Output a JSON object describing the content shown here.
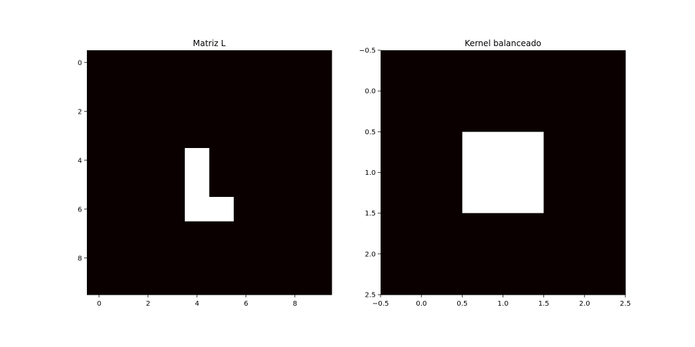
{
  "colors": {
    "background": "#0a0000",
    "foreground": "#ffffff"
  },
  "chart_data": [
    {
      "type": "heatmap",
      "title": "Matriz L",
      "rows": 10,
      "cols": 10,
      "colormap": "hot",
      "matrix": [
        [
          0,
          0,
          0,
          0,
          0,
          0,
          0,
          0,
          0,
          0
        ],
        [
          0,
          0,
          0,
          0,
          0,
          0,
          0,
          0,
          0,
          0
        ],
        [
          0,
          0,
          0,
          0,
          0,
          0,
          0,
          0,
          0,
          0
        ],
        [
          0,
          0,
          0,
          0,
          0,
          0,
          0,
          0,
          0,
          0
        ],
        [
          0,
          0,
          0,
          0,
          1,
          0,
          0,
          0,
          0,
          0
        ],
        [
          0,
          0,
          0,
          0,
          1,
          0,
          0,
          0,
          0,
          0
        ],
        [
          0,
          0,
          0,
          0,
          1,
          1,
          0,
          0,
          0,
          0
        ],
        [
          0,
          0,
          0,
          0,
          0,
          0,
          0,
          0,
          0,
          0
        ],
        [
          0,
          0,
          0,
          0,
          0,
          0,
          0,
          0,
          0,
          0
        ],
        [
          0,
          0,
          0,
          0,
          0,
          0,
          0,
          0,
          0,
          0
        ]
      ],
      "xlim": [
        -0.5,
        9.5
      ],
      "ylim": [
        9.5,
        -0.5
      ],
      "xticks": [
        0,
        2,
        4,
        6,
        8
      ],
      "yticks": [
        0,
        2,
        4,
        6,
        8
      ],
      "xtick_labels": [
        "0",
        "2",
        "4",
        "6",
        "8"
      ],
      "ytick_labels": [
        "0",
        "2",
        "4",
        "6",
        "8"
      ]
    },
    {
      "type": "heatmap",
      "title": "Kernel balanceado",
      "rows": 3,
      "cols": 3,
      "colormap": "hot",
      "matrix": [
        [
          0,
          0,
          0
        ],
        [
          0,
          1,
          0
        ],
        [
          0,
          0,
          0
        ]
      ],
      "xlim": [
        -0.5,
        2.5
      ],
      "ylim": [
        2.5,
        -0.5
      ],
      "xticks": [
        -0.5,
        0.0,
        0.5,
        1.0,
        1.5,
        2.0,
        2.5
      ],
      "yticks": [
        -0.5,
        0.0,
        0.5,
        1.0,
        1.5,
        2.0,
        2.5
      ],
      "xtick_labels": [
        "−0.5",
        "0.0",
        "0.5",
        "1.0",
        "1.5",
        "2.0",
        "2.5"
      ],
      "ytick_labels": [
        "−0.5",
        "0.0",
        "0.5",
        "1.0",
        "1.5",
        "2.0",
        "2.5"
      ]
    }
  ]
}
